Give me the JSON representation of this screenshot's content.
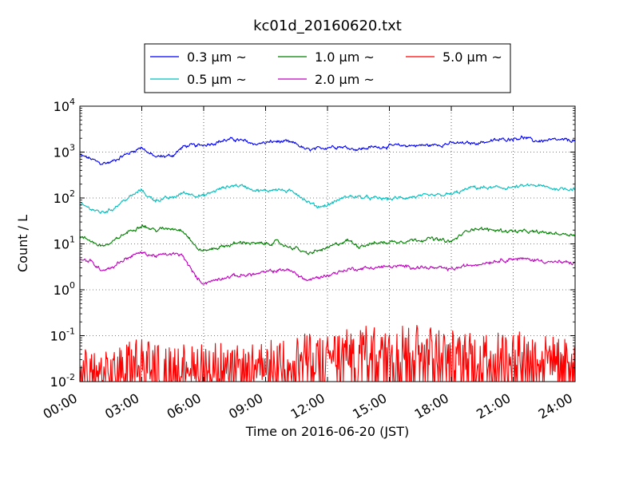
{
  "chart_data": {
    "type": "line",
    "title": "kc01d_20160620.txt",
    "xlabel": "Time on 2016-06-20 (JST)",
    "ylabel": "Count / L",
    "yscale": "log",
    "ylim": [
      0.01,
      10000
    ],
    "xlim": [
      "00:00",
      "24:00"
    ],
    "x_ticks": [
      "00:00",
      "03:00",
      "06:00",
      "09:00",
      "12:00",
      "15:00",
      "18:00",
      "21:00",
      "24:00"
    ],
    "y_ticks": [
      {
        "base": "10",
        "exp": "-2"
      },
      {
        "base": "10",
        "exp": "-1"
      },
      {
        "base": "10",
        "exp": "0"
      },
      {
        "base": "10",
        "exp": "1"
      },
      {
        "base": "10",
        "exp": "2"
      },
      {
        "base": "10",
        "exp": "3"
      },
      {
        "base": "10",
        "exp": "4"
      }
    ],
    "grid": true,
    "legend_position": "top-center (above plot)",
    "series": [
      {
        "name": "0.3 μm ~",
        "color": "#0000ff",
        "x": [
          "00:00",
          "00:30",
          "01:00",
          "01:30",
          "02:00",
          "02:30",
          "03:00",
          "03:20",
          "03:40",
          "04:00",
          "04:30",
          "05:00",
          "05:20",
          "05:40",
          "06:00",
          "06:30",
          "07:00",
          "07:30",
          "08:00",
          "08:30",
          "09:00",
          "09:30",
          "10:00",
          "10:30",
          "11:00",
          "11:30",
          "12:00",
          "12:30",
          "13:00",
          "13:30",
          "14:00",
          "15:00",
          "16:00",
          "17:00",
          "18:00",
          "19:00",
          "20:00",
          "21:00",
          "21:30",
          "22:00",
          "23:00",
          "24:00"
        ],
        "values": [
          850,
          720,
          560,
          600,
          800,
          1000,
          1300,
          950,
          780,
          800,
          850,
          1300,
          1400,
          1350,
          1450,
          1600,
          1800,
          1900,
          1700,
          1500,
          1600,
          1700,
          1650,
          1500,
          1100,
          1150,
          1300,
          1350,
          1250,
          1150,
          1250,
          1350,
          1400,
          1400,
          1550,
          1550,
          1750,
          2000,
          2100,
          1750,
          1800,
          1800
        ]
      },
      {
        "name": "0.5 μm ~",
        "color": "#00bfbf",
        "x": [
          "00:00",
          "00:30",
          "01:00",
          "01:30",
          "02:00",
          "02:30",
          "03:00",
          "03:20",
          "03:40",
          "04:00",
          "04:30",
          "05:00",
          "05:30",
          "06:00",
          "06:30",
          "07:00",
          "07:30",
          "08:00",
          "08:30",
          "09:00",
          "09:30",
          "10:00",
          "10:30",
          "11:00",
          "11:30",
          "12:00",
          "12:30",
          "13:00",
          "14:00",
          "15:00",
          "16:00",
          "17:00",
          "18:00",
          "18:30",
          "19:00",
          "20:00",
          "21:00",
          "22:00",
          "23:00",
          "24:00"
        ],
        "values": [
          70,
          60,
          48,
          55,
          80,
          110,
          150,
          105,
          90,
          95,
          100,
          130,
          120,
          110,
          140,
          170,
          190,
          180,
          150,
          140,
          160,
          140,
          130,
          85,
          65,
          70,
          90,
          110,
          100,
          95,
          105,
          110,
          120,
          140,
          170,
          165,
          170,
          190,
          160,
          160
        ]
      },
      {
        "name": "1.0 μm ~",
        "color": "#008000",
        "x": [
          "00:00",
          "00:30",
          "01:00",
          "01:30",
          "02:00",
          "02:30",
          "03:00",
          "03:20",
          "03:40",
          "04:00",
          "04:30",
          "05:00",
          "05:20",
          "05:40",
          "06:00",
          "06:30",
          "07:00",
          "07:30",
          "08:00",
          "08:30",
          "09:00",
          "09:30",
          "10:00",
          "10:30",
          "11:00",
          "11:30",
          "12:00",
          "12:30",
          "13:00",
          "13:30",
          "14:00",
          "15:00",
          "16:00",
          "17:00",
          "17:30",
          "18:00",
          "18:30",
          "19:00",
          "20:00",
          "21:00",
          "22:00",
          "23:00",
          "24:00"
        ],
        "values": [
          14,
          12,
          9,
          10,
          15,
          20,
          26,
          22,
          20,
          21,
          22,
          20,
          13,
          8,
          7,
          8,
          9,
          10,
          11,
          10,
          10,
          11,
          9,
          8,
          6,
          7,
          8,
          10,
          12,
          9,
          10,
          11,
          12,
          13,
          12,
          11,
          16,
          22,
          20,
          19,
          18,
          17,
          16
        ]
      },
      {
        "name": "2.0 μm ~",
        "color": "#bf00bf",
        "x": [
          "00:00",
          "00:30",
          "01:00",
          "01:30",
          "02:00",
          "02:30",
          "03:00",
          "03:20",
          "03:40",
          "04:00",
          "04:30",
          "05:00",
          "05:20",
          "05:40",
          "06:00",
          "06:30",
          "07:00",
          "07:30",
          "08:00",
          "08:30",
          "09:00",
          "09:30",
          "10:00",
          "10:30",
          "11:00",
          "11:30",
          "12:00",
          "12:30",
          "13:00",
          "14:00",
          "15:00",
          "16:00",
          "17:00",
          "18:00",
          "19:00",
          "20:00",
          "21:00",
          "22:00",
          "23:00",
          "24:00"
        ],
        "values": [
          4.5,
          4.2,
          2.8,
          3.0,
          4.2,
          5.5,
          6.5,
          5.8,
          5.5,
          5.7,
          6.0,
          5.5,
          3.0,
          1.8,
          1.4,
          1.6,
          1.9,
          2.0,
          2.1,
          2.2,
          2.4,
          2.6,
          2.8,
          2.2,
          1.6,
          1.8,
          2.1,
          2.4,
          2.8,
          3.0,
          3.2,
          3.2,
          3.0,
          2.8,
          3.5,
          4.2,
          4.8,
          4.5,
          4.0,
          3.8
        ]
      },
      {
        "name": "5.0 μm ~",
        "color": "#ff0000",
        "x": [
          "00:00",
          "01:00",
          "02:00",
          "03:00",
          "04:00",
          "05:00",
          "06:00",
          "07:00",
          "08:00",
          "09:00",
          "10:00",
          "11:00",
          "12:00",
          "13:00",
          "14:00",
          "15:00",
          "16:00",
          "17:00",
          "18:00",
          "19:00",
          "20:00",
          "21:00",
          "22:00",
          "23:00",
          "24:00"
        ],
        "values": [
          0.02,
          0.015,
          0.02,
          0.04,
          0.02,
          0.025,
          0.03,
          0.025,
          0.02,
          0.03,
          0.035,
          0.04,
          0.04,
          0.05,
          0.06,
          0.07,
          0.07,
          0.06,
          0.05,
          0.04,
          0.04,
          0.05,
          0.04,
          0.035,
          0.03
        ]
      }
    ]
  }
}
